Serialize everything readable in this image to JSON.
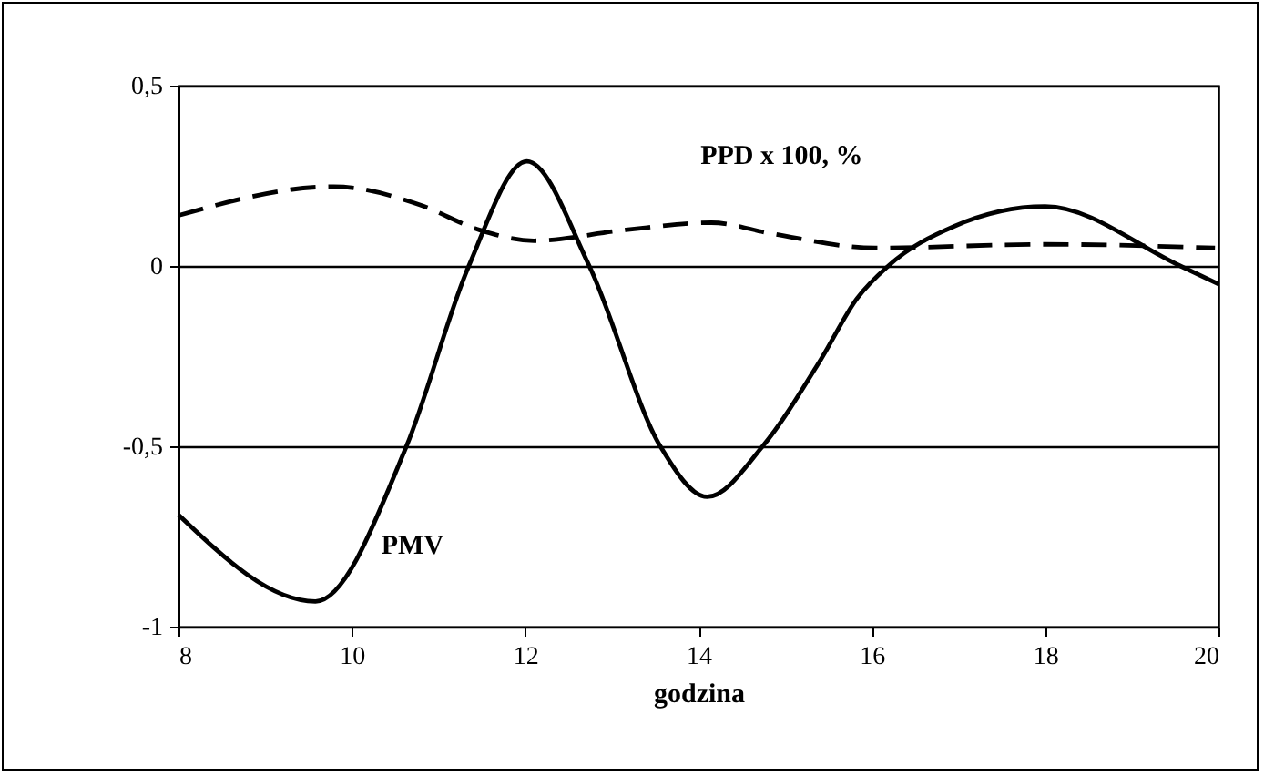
{
  "chart_data": {
    "type": "line",
    "xlabel": "godzina",
    "xlim": [
      8,
      20
    ],
    "xticks": [
      8,
      10,
      12,
      14,
      16,
      18,
      20
    ],
    "ylim": [
      -1,
      0.5
    ],
    "yticks": [
      {
        "value": -1,
        "label": "-1"
      },
      {
        "value": -0.5,
        "label": "-0,5"
      },
      {
        "value": 0,
        "label": "0"
      },
      {
        "value": 0.5,
        "label": "0,5"
      }
    ],
    "grid": "y",
    "marker": "none",
    "series": [
      {
        "name": "PPD x 100,  %",
        "color": "#000000",
        "line_style": "dashed",
        "x": [
          8,
          9.79,
          10.78,
          11.47,
          12.1,
          13.16,
          14.15,
          14.84,
          16.04,
          18,
          19.96
        ],
        "values": [
          0.14,
          0.22,
          0.17,
          0.1,
          0.07,
          0.1,
          0.12,
          0.09,
          0.05,
          0.06,
          0.05
        ]
      },
      {
        "name": "PMV",
        "color": "#000000",
        "line_style": "solid",
        "x": [
          8,
          9.58,
          10.63,
          11.35,
          12.02,
          12.74,
          13.56,
          14.1,
          14.74,
          15.41,
          15.83,
          16.19,
          16.95,
          18,
          19.56,
          20
        ],
        "values": [
          -0.69,
          -0.93,
          -0.5,
          0,
          0.29,
          0,
          -0.5,
          -0.64,
          -0.5,
          -0.26,
          -0.09,
          0,
          0.11,
          0.165,
          0,
          -0.05
        ]
      }
    ]
  }
}
